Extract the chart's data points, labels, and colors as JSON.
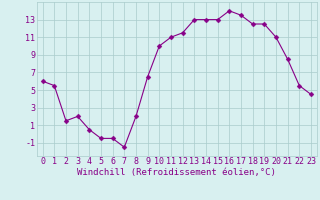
{
  "x": [
    0,
    1,
    2,
    3,
    4,
    5,
    6,
    7,
    8,
    9,
    10,
    11,
    12,
    13,
    14,
    15,
    16,
    17,
    18,
    19,
    20,
    21,
    22,
    23
  ],
  "y": [
    6.0,
    5.5,
    1.5,
    2.0,
    0.5,
    -0.5,
    -0.5,
    -1.5,
    2.0,
    6.5,
    10.0,
    11.0,
    11.5,
    13.0,
    13.0,
    13.0,
    14.0,
    13.5,
    12.5,
    12.5,
    11.0,
    8.5,
    5.5,
    4.5
  ],
  "line_color": "#880088",
  "marker": "D",
  "marker_size": 2.5,
  "bg_color": "#d8f0f0",
  "grid_color": "#aacccc",
  "xlabel": "Windchill (Refroidissement éolien,°C)",
  "xlabel_color": "#880088",
  "xlabel_fontsize": 6.5,
  "tick_color": "#880088",
  "tick_fontsize": 6.0,
  "xlim": [
    -0.5,
    23.5
  ],
  "ylim": [
    -2.5,
    15.0
  ],
  "yticks": [
    -1,
    1,
    3,
    5,
    7,
    9,
    11,
    13
  ],
  "xticks": [
    0,
    1,
    2,
    3,
    4,
    5,
    6,
    7,
    8,
    9,
    10,
    11,
    12,
    13,
    14,
    15,
    16,
    17,
    18,
    19,
    20,
    21,
    22,
    23
  ]
}
